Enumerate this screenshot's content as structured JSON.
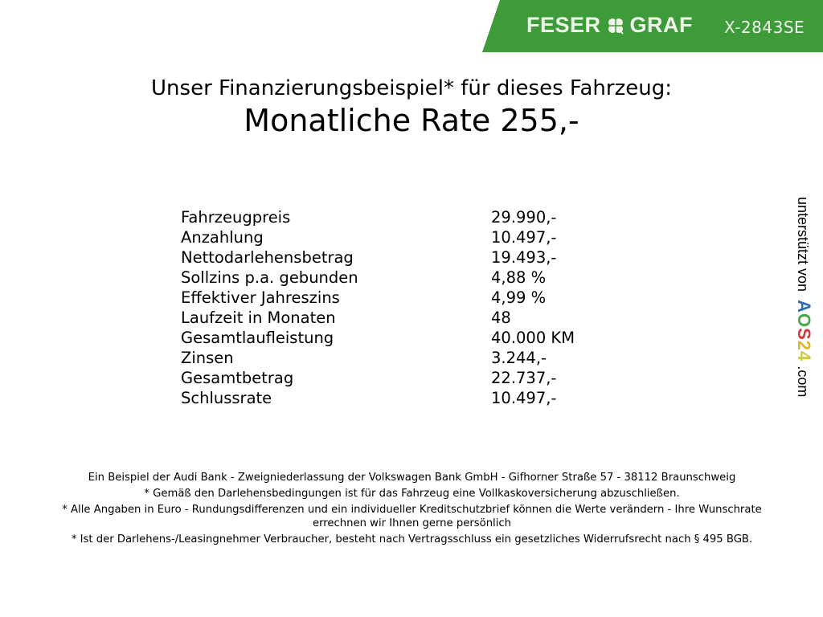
{
  "header": {
    "brand": "FESER GRAF",
    "brand_left": "FESER",
    "brand_right": "GRAF",
    "vehicle_code": "X-2843SE",
    "brand_color": "#3f9a3a",
    "logo_icon": "clover-icon"
  },
  "headline": {
    "intro": "Unser Finanzierungsbeispiel* für dieses Fahrzeug:",
    "rate": "Monatliche Rate 255,-"
  },
  "details": [
    {
      "label": "Fahrzeugpreis",
      "value": "29.990,-"
    },
    {
      "label": "Anzahlung",
      "value": "10.497,-"
    },
    {
      "label": "Nettodarlehensbetrag",
      "value": "19.493,-"
    },
    {
      "label": "Sollzins p.a. gebunden",
      "value": "4,88 %"
    },
    {
      "label": "Effektiver Jahreszins",
      "value": "4,99 %"
    },
    {
      "label": "Laufzeit in Monaten",
      "value": "48"
    },
    {
      "label": "Gesamtlaufleistung",
      "value": "40.000 KM"
    },
    {
      "label": "Zinsen",
      "value": "3.244,-"
    },
    {
      "label": "Gesamtbetrag",
      "value": "22.737,-"
    },
    {
      "label": "Schlussrate",
      "value": "10.497,-"
    }
  ],
  "side_note": {
    "prefix": "unterstützt von",
    "logo": "AOS24",
    "suffix": ".com"
  },
  "footer": [
    "Ein Beispiel der Audi Bank - Zweigniederlassung der Volkswagen Bank GmbH - Gifhorner Straße 57 - 38112 Braunschweig",
    "* Gemäß den Darlehensbedingungen ist für das Fahrzeug eine Vollkaskoversicherung abzuschließen.",
    "* Alle Angaben in Euro - Rundungsdifferenzen und ein individueller Kreditschutzbrief können die Werte verändern - Ihre Wunschrate errechnen wir Ihnen gerne persönlich",
    "* Ist der Darlehens-/Leasingnehmer Verbraucher, besteht nach Vertragsschluss ein gesetzliches Widerrufsrecht nach § 495 BGB."
  ]
}
